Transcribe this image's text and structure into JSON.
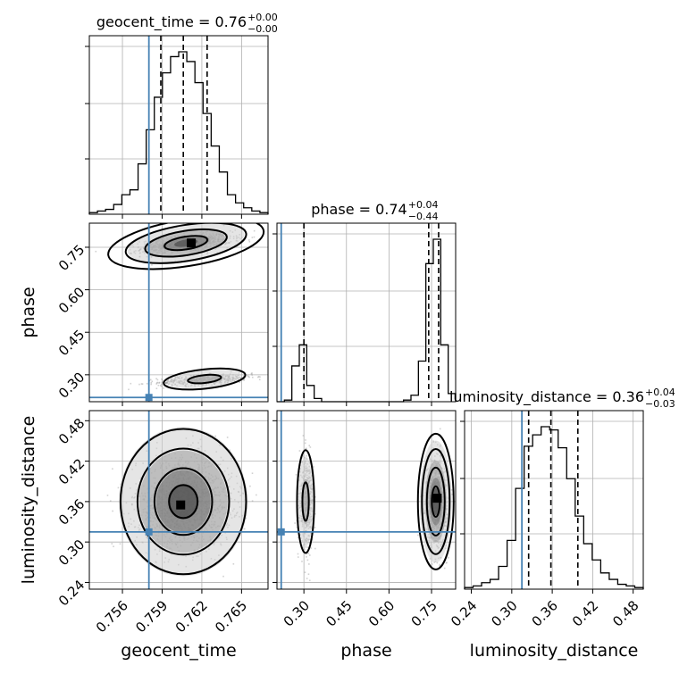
{
  "figure": {
    "type": "corner-plot"
  },
  "colors": {
    "truth": "#4682b4",
    "hist": "#000000",
    "grid": "#b0b0b0",
    "points": "#9a9a9a"
  },
  "chart_data": {
    "type": "corner",
    "parameters": [
      "geocent_time",
      "phase",
      "luminosity_distance"
    ],
    "truths": {
      "geocent_time": 0.758,
      "phase": 0.22,
      "luminosity_distance": 0.315
    },
    "titles": [
      {
        "label": "geocent_time = 0.76",
        "sup": "+0.00",
        "sub": "−0.00"
      },
      {
        "label": "phase = 0.74",
        "sup": "+0.04",
        "sub": "−0.44"
      },
      {
        "label": "luminosity_distance = 0.36",
        "sup": "+0.04",
        "sub": "−0.03"
      }
    ],
    "ranges": {
      "geocent_time": [
        0.7535,
        0.767
      ],
      "phase": [
        0.205,
        0.835
      ],
      "luminosity_distance": [
        0.23,
        0.495
      ]
    },
    "ticks": {
      "geocent_time": [
        "0.756",
        "0.759",
        "0.762",
        "0.765"
      ],
      "phase": [
        "0.30",
        "0.45",
        "0.60",
        "0.75"
      ],
      "luminosity_distance": [
        "0.24",
        "0.30",
        "0.36",
        "0.42",
        "0.48"
      ]
    },
    "quantiles": {
      "geocent_time": [
        0.7589,
        0.7606,
        0.7624
      ],
      "phase": [
        0.3,
        0.74,
        0.775
      ],
      "luminosity_distance": [
        0.325,
        0.358,
        0.398
      ]
    },
    "hist_geocent_time": [
      0.01,
      0.02,
      0.03,
      0.06,
      0.12,
      0.15,
      0.31,
      0.52,
      0.72,
      0.87,
      0.97,
      1.0,
      0.94,
      0.81,
      0.62,
      0.42,
      0.26,
      0.12,
      0.07,
      0.04,
      0.02,
      0.01
    ],
    "hist_phase": [
      0,
      0.01,
      0.22,
      0.35,
      0.1,
      0.02,
      0,
      0,
      0,
      0,
      0,
      0,
      0,
      0,
      0,
      0,
      0,
      0.01,
      0.04,
      0.25,
      0.85,
      1.0,
      0.35,
      0.05
    ],
    "hist_luminosity_distance": [
      0.01,
      0.02,
      0.04,
      0.06,
      0.14,
      0.3,
      0.62,
      0.88,
      0.95,
      1.0,
      0.98,
      0.87,
      0.68,
      0.45,
      0.28,
      0.18,
      0.1,
      0.06,
      0.03,
      0.02,
      0.01
    ]
  }
}
